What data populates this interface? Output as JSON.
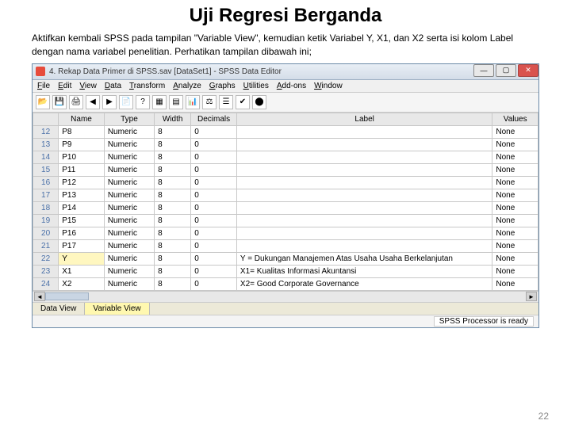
{
  "slide": {
    "title": "Uji Regresi Berganda",
    "paragraph": "Aktifkan kembali SPSS pada tampilan \"Variable View\", kemudian ketik Variabel Y, X1, dan X2 serta isi kolom Label dengan nama variabel penelitian. Perhatikan tampilan dibawah ini;",
    "page_number": "22"
  },
  "window": {
    "title": "4. Rekap Data Primer di SPSS.sav [DataSet1] - SPSS Data Editor",
    "menus": [
      "File",
      "Edit",
      "View",
      "Data",
      "Transform",
      "Analyze",
      "Graphs",
      "Utilities",
      "Add-ons",
      "Window"
    ],
    "toolbar_icons": [
      "📂",
      "💾",
      "🖨",
      "◀",
      "▶",
      "📄",
      "?",
      "▦",
      "▤",
      "📊",
      "⚖",
      "☰",
      "✔",
      "⬤"
    ],
    "view_tabs": {
      "data": "Data View",
      "variable": "Variable View"
    },
    "status": "SPSS Processor is ready"
  },
  "grid": {
    "headers": [
      "",
      "Name",
      "Type",
      "Width",
      "Decimals",
      "Label",
      "Values"
    ],
    "rows": [
      {
        "n": "12",
        "name": "P8",
        "type": "Numeric",
        "width": "8",
        "dec": "0",
        "label": "",
        "values": "None"
      },
      {
        "n": "13",
        "name": "P9",
        "type": "Numeric",
        "width": "8",
        "dec": "0",
        "label": "",
        "values": "None"
      },
      {
        "n": "14",
        "name": "P10",
        "type": "Numeric",
        "width": "8",
        "dec": "0",
        "label": "",
        "values": "None"
      },
      {
        "n": "15",
        "name": "P11",
        "type": "Numeric",
        "width": "8",
        "dec": "0",
        "label": "",
        "values": "None"
      },
      {
        "n": "16",
        "name": "P12",
        "type": "Numeric",
        "width": "8",
        "dec": "0",
        "label": "",
        "values": "None"
      },
      {
        "n": "17",
        "name": "P13",
        "type": "Numeric",
        "width": "8",
        "dec": "0",
        "label": "",
        "values": "None"
      },
      {
        "n": "18",
        "name": "P14",
        "type": "Numeric",
        "width": "8",
        "dec": "0",
        "label": "",
        "values": "None"
      },
      {
        "n": "19",
        "name": "P15",
        "type": "Numeric",
        "width": "8",
        "dec": "0",
        "label": "",
        "values": "None"
      },
      {
        "n": "20",
        "name": "P16",
        "type": "Numeric",
        "width": "8",
        "dec": "0",
        "label": "",
        "values": "None"
      },
      {
        "n": "21",
        "name": "P17",
        "type": "Numeric",
        "width": "8",
        "dec": "0",
        "label": "",
        "values": "None"
      },
      {
        "n": "22",
        "name": "Y",
        "type": "Numeric",
        "width": "8",
        "dec": "0",
        "label": "Y = Dukungan Manajemen Atas Usaha Usaha Berkelanjutan",
        "values": "None",
        "selected": true
      },
      {
        "n": "23",
        "name": "X1",
        "type": "Numeric",
        "width": "8",
        "dec": "0",
        "label": "X1= Kualitas Informasi Akuntansi",
        "values": "None"
      },
      {
        "n": "24",
        "name": "X2",
        "type": "Numeric",
        "width": "8",
        "dec": "0",
        "label": "X2= Good Corporate Governance",
        "values": "None"
      }
    ]
  }
}
